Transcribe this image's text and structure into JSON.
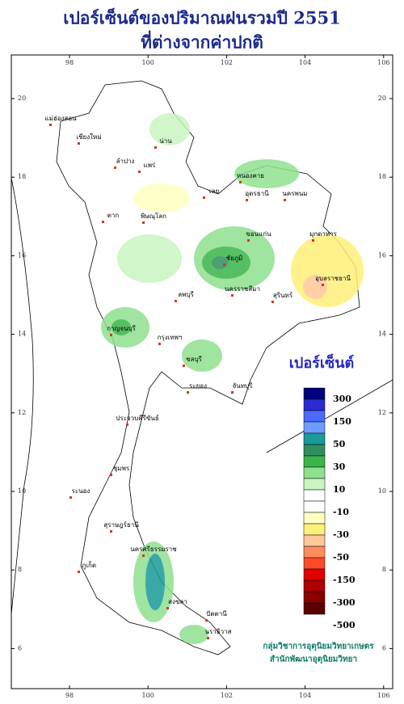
{
  "header": {
    "title": [
      "เปอร์เซ็นต์ของปริมาณฝนรวมปี  2551",
      "ที่ต่างจากค่าปกติ"
    ]
  },
  "map": {
    "lon_ticks": [
      98,
      100,
      102,
      104,
      106
    ],
    "lat_ticks": [
      20,
      18,
      16,
      14,
      12,
      10,
      8,
      6
    ]
  },
  "places": [
    "แม่ฮ่องสอน",
    "เชียงใหม่",
    "น่าน",
    "ลำปาง",
    "แพร่",
    "เลย",
    "หนองคาย",
    "อุดรธานี",
    "นครพนม",
    "ตาก",
    "พิษณุโลก",
    "ขอนแก่น",
    "มุกดาหาร",
    "ชัยภูมิ",
    "อุบลราชธานี",
    "นครราชสีมา",
    "สุรินทร์",
    "ลพบุรี",
    "กาญจนบุรี",
    "กรุงเทพฯ",
    "ชลบุรี",
    "ระยอง",
    "จันทบุรี",
    "ประจวบคีรีขันธ์",
    "ชุมพร",
    "ระนอง",
    "สุราษฎร์ธานี",
    "ภูเก็ต",
    "นครศรีธรรมราช",
    "สงขลา",
    "ปัตตานี",
    "นราธิวาส"
  ],
  "legend": {
    "title": "เปอร์เซ็นต์",
    "colors": [
      "#00007f",
      "#2b2bd0",
      "#4b6bff",
      "#6f9cff",
      "#1a9a9a",
      "#2f8f5f",
      "#39b54a",
      "#8fe08f",
      "#c8f5c0",
      "#ffffff",
      "#ffffff",
      "#ffffc0",
      "#fff07a",
      "#ffc89a",
      "#ff8c5a",
      "#ff4a2a",
      "#e00000",
      "#b00000",
      "#8a0000",
      "#5a0000"
    ],
    "labels": [
      "300",
      "150",
      "50",
      "30",
      "10",
      "-10",
      "-30",
      "-50",
      "-150",
      "-300",
      "-500"
    ]
  },
  "credits": [
    "กลุ่มวิชาการอุตุนิยมวิทยาเกษตร",
    "สำนักพัฒนาอุตุนิยมวิทยา"
  ]
}
